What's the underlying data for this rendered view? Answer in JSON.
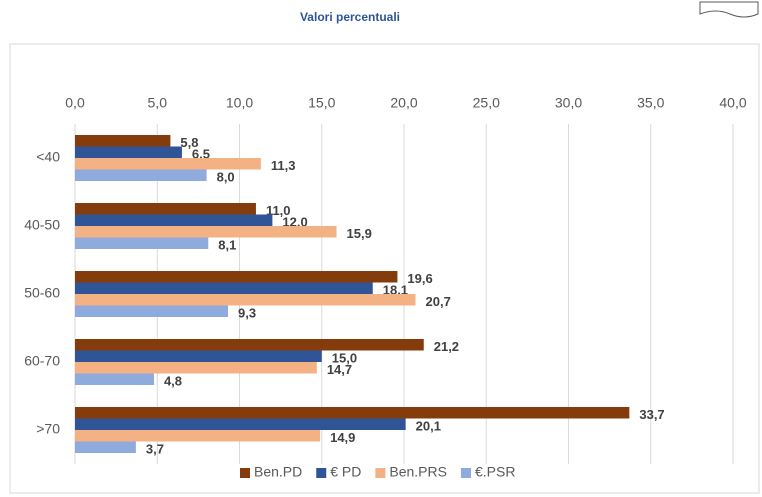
{
  "chart_data": {
    "type": "hbar",
    "title": "Valori percentuali",
    "categories": [
      "<40",
      "40-50",
      "50-60",
      "60-70",
      ">70"
    ],
    "series": [
      {
        "name": "Ben.PD",
        "color": "#843c0c",
        "values": [
          5.8,
          11.0,
          19.6,
          21.2,
          33.7
        ],
        "value_labels": [
          "5,8",
          "11,0",
          "19,6",
          "21,2",
          "33,7"
        ]
      },
      {
        "name": "€ PD",
        "color": "#2f5597",
        "values": [
          6.5,
          12.0,
          18.1,
          15.0,
          20.1
        ],
        "value_labels": [
          "6,5",
          "12,0",
          "18,1",
          "15,0",
          "20,1"
        ]
      },
      {
        "name": "Ben.PRS",
        "color": "#f4b183",
        "values": [
          11.3,
          15.9,
          20.7,
          14.7,
          14.9
        ],
        "value_labels": [
          "11,3",
          "15,9",
          "20,7",
          "14,7",
          "14,9"
        ]
      },
      {
        "name": "€.PSR",
        "color": "#8faadc",
        "values": [
          8.0,
          8.1,
          9.3,
          4.8,
          3.7
        ],
        "value_labels": [
          "8,0",
          "8,1",
          "9,3",
          "4,8",
          "3,7"
        ]
      }
    ],
    "xlim": [
      0,
      40
    ],
    "xticks": [
      {
        "value": 0,
        "label": "0,0"
      },
      {
        "value": 5,
        "label": "5,0"
      },
      {
        "value": 10,
        "label": "10,0"
      },
      {
        "value": 15,
        "label": "15,0"
      },
      {
        "value": 20,
        "label": "20,0"
      },
      {
        "value": 25,
        "label": "25,0"
      },
      {
        "value": 30,
        "label": "30,0"
      },
      {
        "value": 35,
        "label": "35,0"
      },
      {
        "value": 40,
        "label": "40,0"
      }
    ],
    "grid": true,
    "legend": "bottom"
  }
}
